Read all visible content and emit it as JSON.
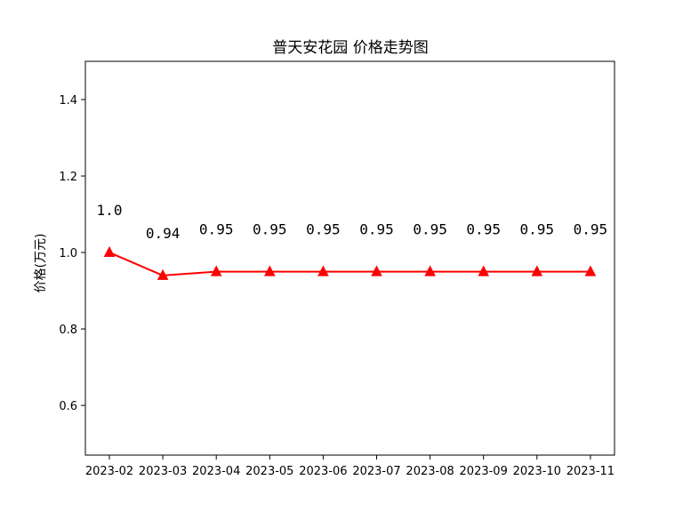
{
  "chart_data": {
    "type": "line",
    "title": "普天安花园 价格走势图",
    "xlabel": "",
    "ylabel": "价格(万元)",
    "categories": [
      "2023-02",
      "2023-03",
      "2023-04",
      "2023-05",
      "2023-06",
      "2023-07",
      "2023-08",
      "2023-09",
      "2023-10",
      "2023-11"
    ],
    "series": [
      {
        "values": [
          1.0,
          0.94,
          0.95,
          0.95,
          0.95,
          0.95,
          0.95,
          0.95,
          0.95,
          0.95
        ],
        "labels": [
          "1.0",
          "0.94",
          "0.95",
          "0.95",
          "0.95",
          "0.95",
          "0.95",
          "0.95",
          "0.95",
          "0.95"
        ],
        "color": "#ff0000",
        "marker": "triangle-up"
      }
    ],
    "ylim": [
      0.47,
      1.5
    ],
    "yticks": [
      "0.6",
      "0.8",
      "1.0",
      "1.2",
      "1.4"
    ],
    "grid": false,
    "legend": "none"
  }
}
